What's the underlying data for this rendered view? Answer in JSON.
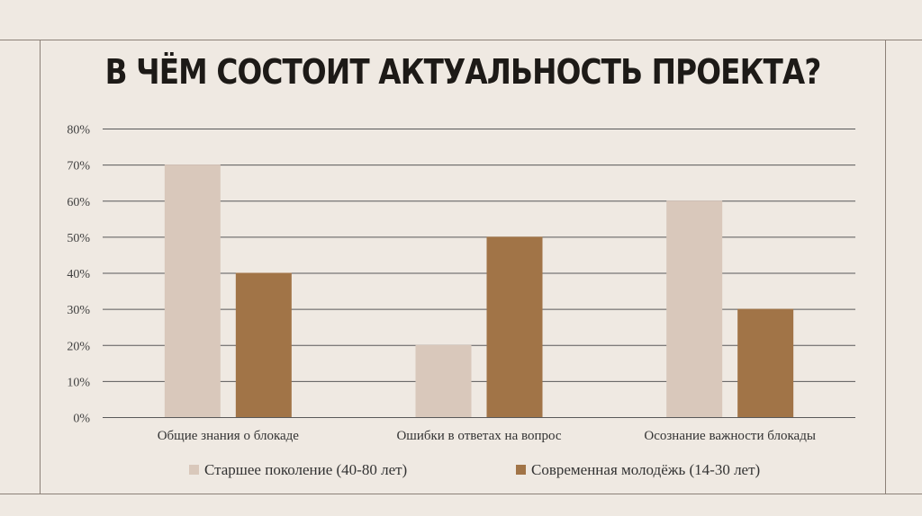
{
  "colors": {
    "background": "#efe9e2",
    "series_old": "#d9c8bb",
    "series_young": "#a17447",
    "grid": "#595959",
    "frame": "#8c8178"
  },
  "slide": {
    "title": "В ЧЁМ СОСТОИТ АКТУАЛЬНОСТЬ ПРОЕКТА?"
  },
  "chart_data": {
    "type": "bar",
    "title": "",
    "xlabel": "",
    "ylabel": "",
    "categories": [
      "Общие знания о блокаде",
      "Ошибки в ответах на вопрос",
      "Осознание важности блокады"
    ],
    "series": [
      {
        "name": "Старшее поколение (40-80 лет)",
        "values": [
          70,
          20,
          60
        ]
      },
      {
        "name": "Современная молодёжь (14-30 лет)",
        "values": [
          40,
          50,
          30
        ]
      }
    ],
    "ylim": [
      0,
      80
    ],
    "yticks": [
      0,
      10,
      20,
      30,
      40,
      50,
      60,
      70,
      80
    ],
    "ytick_labels": [
      "0%",
      "10%",
      "20%",
      "30%",
      "40%",
      "50%",
      "60%",
      "70%",
      "80%"
    ],
    "grid": true,
    "legend_position": "bottom"
  }
}
